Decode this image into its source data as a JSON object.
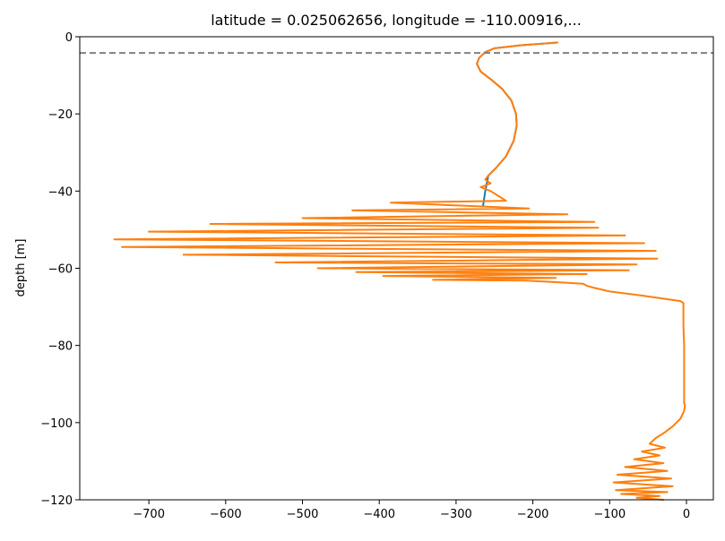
{
  "chart_data": {
    "type": "line",
    "title": "latitude = 0.025062656, longitude = -110.00916,...",
    "xlabel": "",
    "ylabel": "depth [m]",
    "xlim": [
      -790,
      35
    ],
    "ylim": [
      -120,
      0
    ],
    "xticks": [
      -700,
      -600,
      -500,
      -400,
      -300,
      -200,
      -100,
      0
    ],
    "yticks": [
      0,
      -20,
      -40,
      -60,
      -80,
      -100,
      -120
    ],
    "grid": false,
    "reference_lines": [
      {
        "orientation": "horizontal",
        "y": -4.2,
        "style": "dashed",
        "color": "#808080"
      }
    ],
    "series": [
      {
        "color": "#1f77b4",
        "x": [
          -168,
          -215,
          -250,
          -262,
          -270,
          -273,
          -268,
          -255,
          -240,
          -228,
          -222,
          -221,
          -225,
          -235,
          -248,
          -258,
          -262,
          -265
        ],
        "y": [
          -1.5,
          -2.2,
          -3,
          -4,
          -5.5,
          -7,
          -9,
          -11,
          -13.5,
          -16.5,
          -20,
          -23,
          -27,
          -31,
          -34,
          -36,
          -40,
          -44
        ]
      },
      {
        "color": "#ff7f0e",
        "x": [
          -168,
          -215,
          -250,
          -262,
          -270,
          -273,
          -268,
          -255,
          -240,
          -228,
          -222,
          -221,
          -225,
          -235,
          -248,
          -258,
          -262,
          -255,
          -268,
          -255,
          -235,
          -385,
          -205,
          -435,
          -155,
          -500,
          -120,
          -620,
          -115,
          -700,
          -80,
          -745,
          -55,
          -735,
          -40,
          -655,
          -38,
          -535,
          -65,
          -480,
          -75,
          -430,
          -130,
          -395,
          -170,
          -330,
          -210,
          -170,
          -135,
          -130,
          -122,
          -100,
          -60,
          -8,
          -4,
          -4,
          -3,
          -3,
          -3,
          -3,
          -2,
          -3,
          -8,
          -18,
          -28,
          -40,
          -48,
          -28,
          -58,
          -35,
          -68,
          -30,
          -80,
          -25,
          -90,
          -20,
          -95,
          -18,
          -92,
          -25,
          -85,
          -35,
          -65,
          -30
        ],
        "y": [
          -1.5,
          -2.2,
          -3,
          -4,
          -5.5,
          -7,
          -9,
          -11,
          -13.5,
          -16.5,
          -20,
          -23,
          -27,
          -31,
          -34,
          -36,
          -37,
          -38,
          -39,
          -40,
          -42.5,
          -43,
          -44.5,
          -45,
          -46,
          -47,
          -48,
          -48.5,
          -49.5,
          -50.5,
          -51.5,
          -52.5,
          -53.5,
          -54.5,
          -55.5,
          -56.5,
          -57.5,
          -58.5,
          -59,
          -60,
          -60.5,
          -61,
          -61.5,
          -62,
          -62.5,
          -63,
          -63.2,
          -63.6,
          -64,
          -64.5,
          -65,
          -66,
          -67,
          -68.5,
          -69,
          -75,
          -80,
          -85,
          -90,
          -95,
          -95.5,
          -97,
          -99,
          -101,
          -102.5,
          -104,
          -105.5,
          -106.5,
          -107.5,
          -108.5,
          -109.5,
          -110.5,
          -111.5,
          -112.5,
          -113.5,
          -114.5,
          -115.5,
          -116.5,
          -117.5,
          -118,
          -118.5,
          -119,
          -119.5,
          -120
        ]
      }
    ]
  }
}
